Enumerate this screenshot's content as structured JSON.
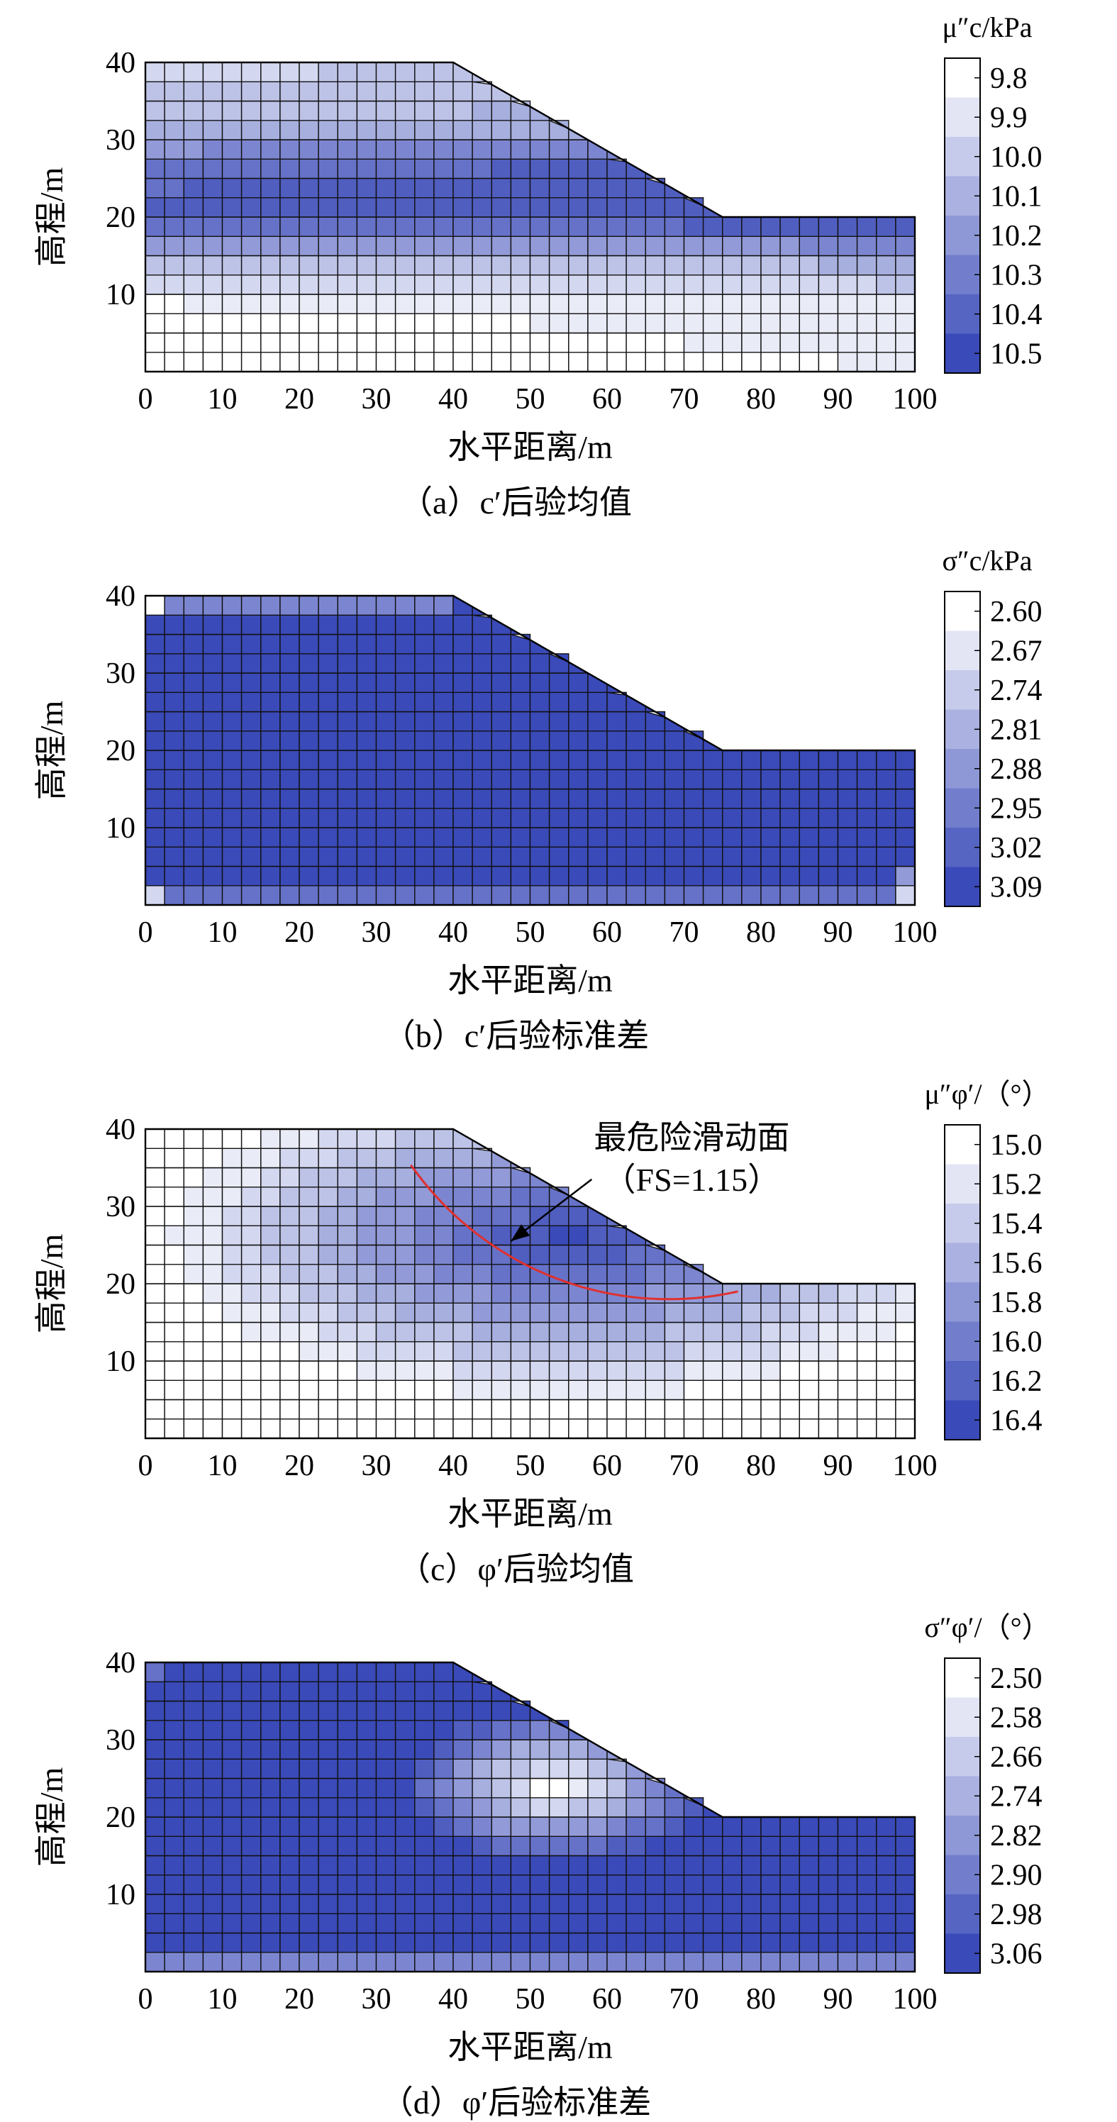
{
  "chart_data": [
    {
      "type": "heatmap",
      "caption": "（a）c′后验均值",
      "xlabel": "水平距离/m",
      "ylabel": "高程/m",
      "xlim": [
        0,
        100
      ],
      "ylim": [
        0,
        40
      ],
      "x_ticks": [
        "0",
        "10",
        "20",
        "30",
        "40",
        "50",
        "60",
        "70",
        "80",
        "90",
        "100"
      ],
      "y_ticks": [
        "10",
        "20",
        "30",
        "40"
      ],
      "slope_profile": [
        [
          0,
          0
        ],
        [
          0,
          40
        ],
        [
          40,
          40
        ],
        [
          75,
          20
        ],
        [
          100,
          20
        ],
        [
          100,
          0
        ]
      ],
      "grid_cell_m": 2.5,
      "colorbar": {
        "title": "μ″c/kPa",
        "ticks": [
          "9.8",
          "9.9",
          "10.0",
          "10.1",
          "10.2",
          "10.3",
          "10.4",
          "10.5"
        ],
        "range": [
          9.8,
          10.5
        ],
        "colors": [
          "#ffffff",
          "#3a4ab8"
        ]
      },
      "field": {
        "description_y": "value vs elevation (m)",
        "profile": [
          [
            0,
            9.8
          ],
          [
            8,
            9.85
          ],
          [
            14,
            10.05
          ],
          [
            20,
            10.45
          ],
          [
            26,
            10.4
          ],
          [
            32,
            10.1
          ],
          [
            40,
            10.0
          ]
        ],
        "x_gradient": 0.004
      }
    },
    {
      "type": "heatmap",
      "caption": "（b）c′后验标准差",
      "xlabel": "水平距离/m",
      "ylabel": "高程/m",
      "xlim": [
        0,
        100
      ],
      "ylim": [
        0,
        40
      ],
      "x_ticks": [
        "0",
        "10",
        "20",
        "30",
        "40",
        "50",
        "60",
        "70",
        "80",
        "90",
        "100"
      ],
      "y_ticks": [
        "10",
        "20",
        "30",
        "40"
      ],
      "slope_profile": [
        [
          0,
          0
        ],
        [
          0,
          40
        ],
        [
          40,
          40
        ],
        [
          75,
          20
        ],
        [
          100,
          20
        ],
        [
          100,
          0
        ]
      ],
      "grid_cell_m": 2.5,
      "colorbar": {
        "title": "σ″c/kPa",
        "ticks": [
          "2.60",
          "2.67",
          "2.74",
          "2.81",
          "2.88",
          "2.95",
          "3.02",
          "3.09"
        ],
        "range": [
          2.6,
          3.09
        ],
        "colors": [
          "#ffffff",
          "#3a4ab8"
        ]
      },
      "field": {
        "description": "near-uniform high value with lighter corners",
        "base": 3.05
      }
    },
    {
      "type": "heatmap",
      "caption": "（c）φ′后验均值",
      "xlabel": "水平距离/m",
      "ylabel": "高程/m",
      "xlim": [
        0,
        100
      ],
      "ylim": [
        0,
        40
      ],
      "x_ticks": [
        "0",
        "10",
        "20",
        "30",
        "40",
        "50",
        "60",
        "70",
        "80",
        "90",
        "100"
      ],
      "y_ticks": [
        "10",
        "20",
        "30",
        "40"
      ],
      "slope_profile": [
        [
          0,
          0
        ],
        [
          0,
          40
        ],
        [
          40,
          40
        ],
        [
          75,
          20
        ],
        [
          100,
          20
        ],
        [
          100,
          0
        ]
      ],
      "grid_cell_m": 2.5,
      "colorbar": {
        "title": "μ″φ′/（°）",
        "ticks": [
          "15.0",
          "15.2",
          "15.4",
          "15.6",
          "15.8",
          "16.0",
          "16.2",
          "16.4"
        ],
        "range": [
          15.0,
          16.4
        ],
        "colors": [
          "#ffffff",
          "#3a4ab8"
        ]
      },
      "slip_surface": {
        "label": "最危险滑动面",
        "fs_label": "（FS=1.15）",
        "center": [
          68,
          59
        ],
        "radius": 41,
        "x_start": 34.5,
        "x_end": 77
      },
      "field": {
        "description": "dark core around the critical slip zone, lighter at base"
      }
    },
    {
      "type": "heatmap",
      "caption": "（d）φ′后验标准差",
      "xlabel": "水平距离/m",
      "ylabel": "高程/m",
      "xlim": [
        0,
        100
      ],
      "ylim": [
        0,
        40
      ],
      "x_ticks": [
        "0",
        "10",
        "20",
        "30",
        "40",
        "50",
        "60",
        "70",
        "80",
        "90",
        "100"
      ],
      "y_ticks": [
        "10",
        "20",
        "30",
        "40"
      ],
      "slope_profile": [
        [
          0,
          0
        ],
        [
          0,
          40
        ],
        [
          40,
          40
        ],
        [
          75,
          20
        ],
        [
          100,
          20
        ],
        [
          100,
          0
        ]
      ],
      "grid_cell_m": 2.5,
      "colorbar": {
        "title": "σ″φ′/（°）",
        "ticks": [
          "2.50",
          "2.58",
          "2.66",
          "2.74",
          "2.82",
          "2.90",
          "2.98",
          "3.06"
        ],
        "range": [
          2.5,
          3.06
        ],
        "colors": [
          "#ffffff",
          "#3a4ab8"
        ]
      },
      "field": {
        "description": "uniform high value with light patch in slope near slip zone"
      }
    }
  ]
}
